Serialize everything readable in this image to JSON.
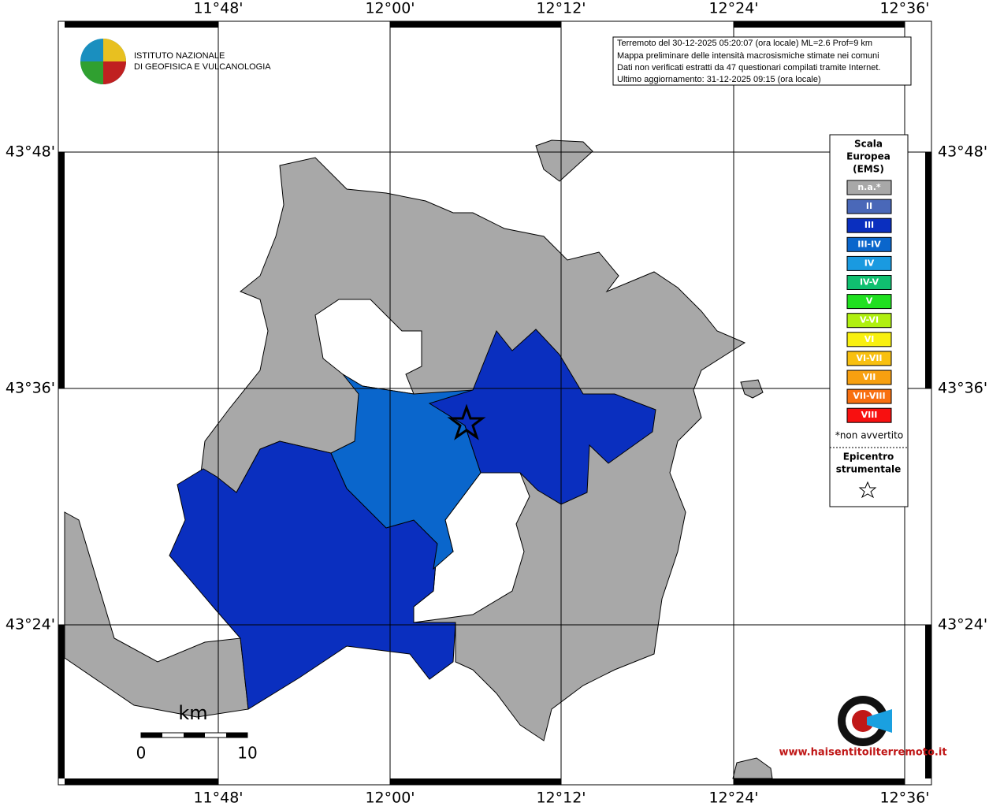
{
  "logo": {
    "line1": "ISTITUTO NAZIONALE",
    "line2": "DI GEOFISICA E VULCANOLOGIA"
  },
  "info": [
    "Terremoto del 30-12-2025 05:20:07 (ora locale) ML=2.6 Prof=9 km",
    "Mappa preliminare delle intensità macrosismiche stimate nei comuni",
    "Dati non verificati estratti da 47 questionari compilati tramite Internet.",
    "Ultimo aggiornamento: 31-12-2025 09:15 (ora locale)"
  ],
  "lon_labels": [
    "11°48'",
    "12°00'",
    "12°12'",
    "12°24'",
    "12°36'"
  ],
  "lat_labels": [
    "43°48'",
    "43°36'",
    "43°24'"
  ],
  "legend": {
    "title": [
      "Scala",
      "Europea",
      "(EMS)"
    ],
    "items": [
      {
        "label": "n.a.*",
        "color": "#a8a8a8"
      },
      {
        "label": "II",
        "color": "#4a68b8"
      },
      {
        "label": "III",
        "color": "#0a2fbf"
      },
      {
        "label": "III-IV",
        "color": "#0a66cc"
      },
      {
        "label": "IV",
        "color": "#1a9ae0"
      },
      {
        "label": "IV-V",
        "color": "#10c070"
      },
      {
        "label": "V",
        "color": "#20e020"
      },
      {
        "label": "V-VI",
        "color": "#b0f010"
      },
      {
        "label": "VI",
        "color": "#f8f010"
      },
      {
        "label": "VI-VII",
        "color": "#f8c010"
      },
      {
        "label": "VII",
        "color": "#f8a010"
      },
      {
        "label": "VII-VIII",
        "color": "#f87010"
      },
      {
        "label": "VIII",
        "color": "#f81010"
      }
    ],
    "note": "*non avvertito",
    "epicenter": [
      "Epicentro",
      "strumentale"
    ]
  },
  "scale": {
    "unit": "km",
    "start": "0",
    "end": "10"
  },
  "site": "www.haisentitoilterremoto.it"
}
